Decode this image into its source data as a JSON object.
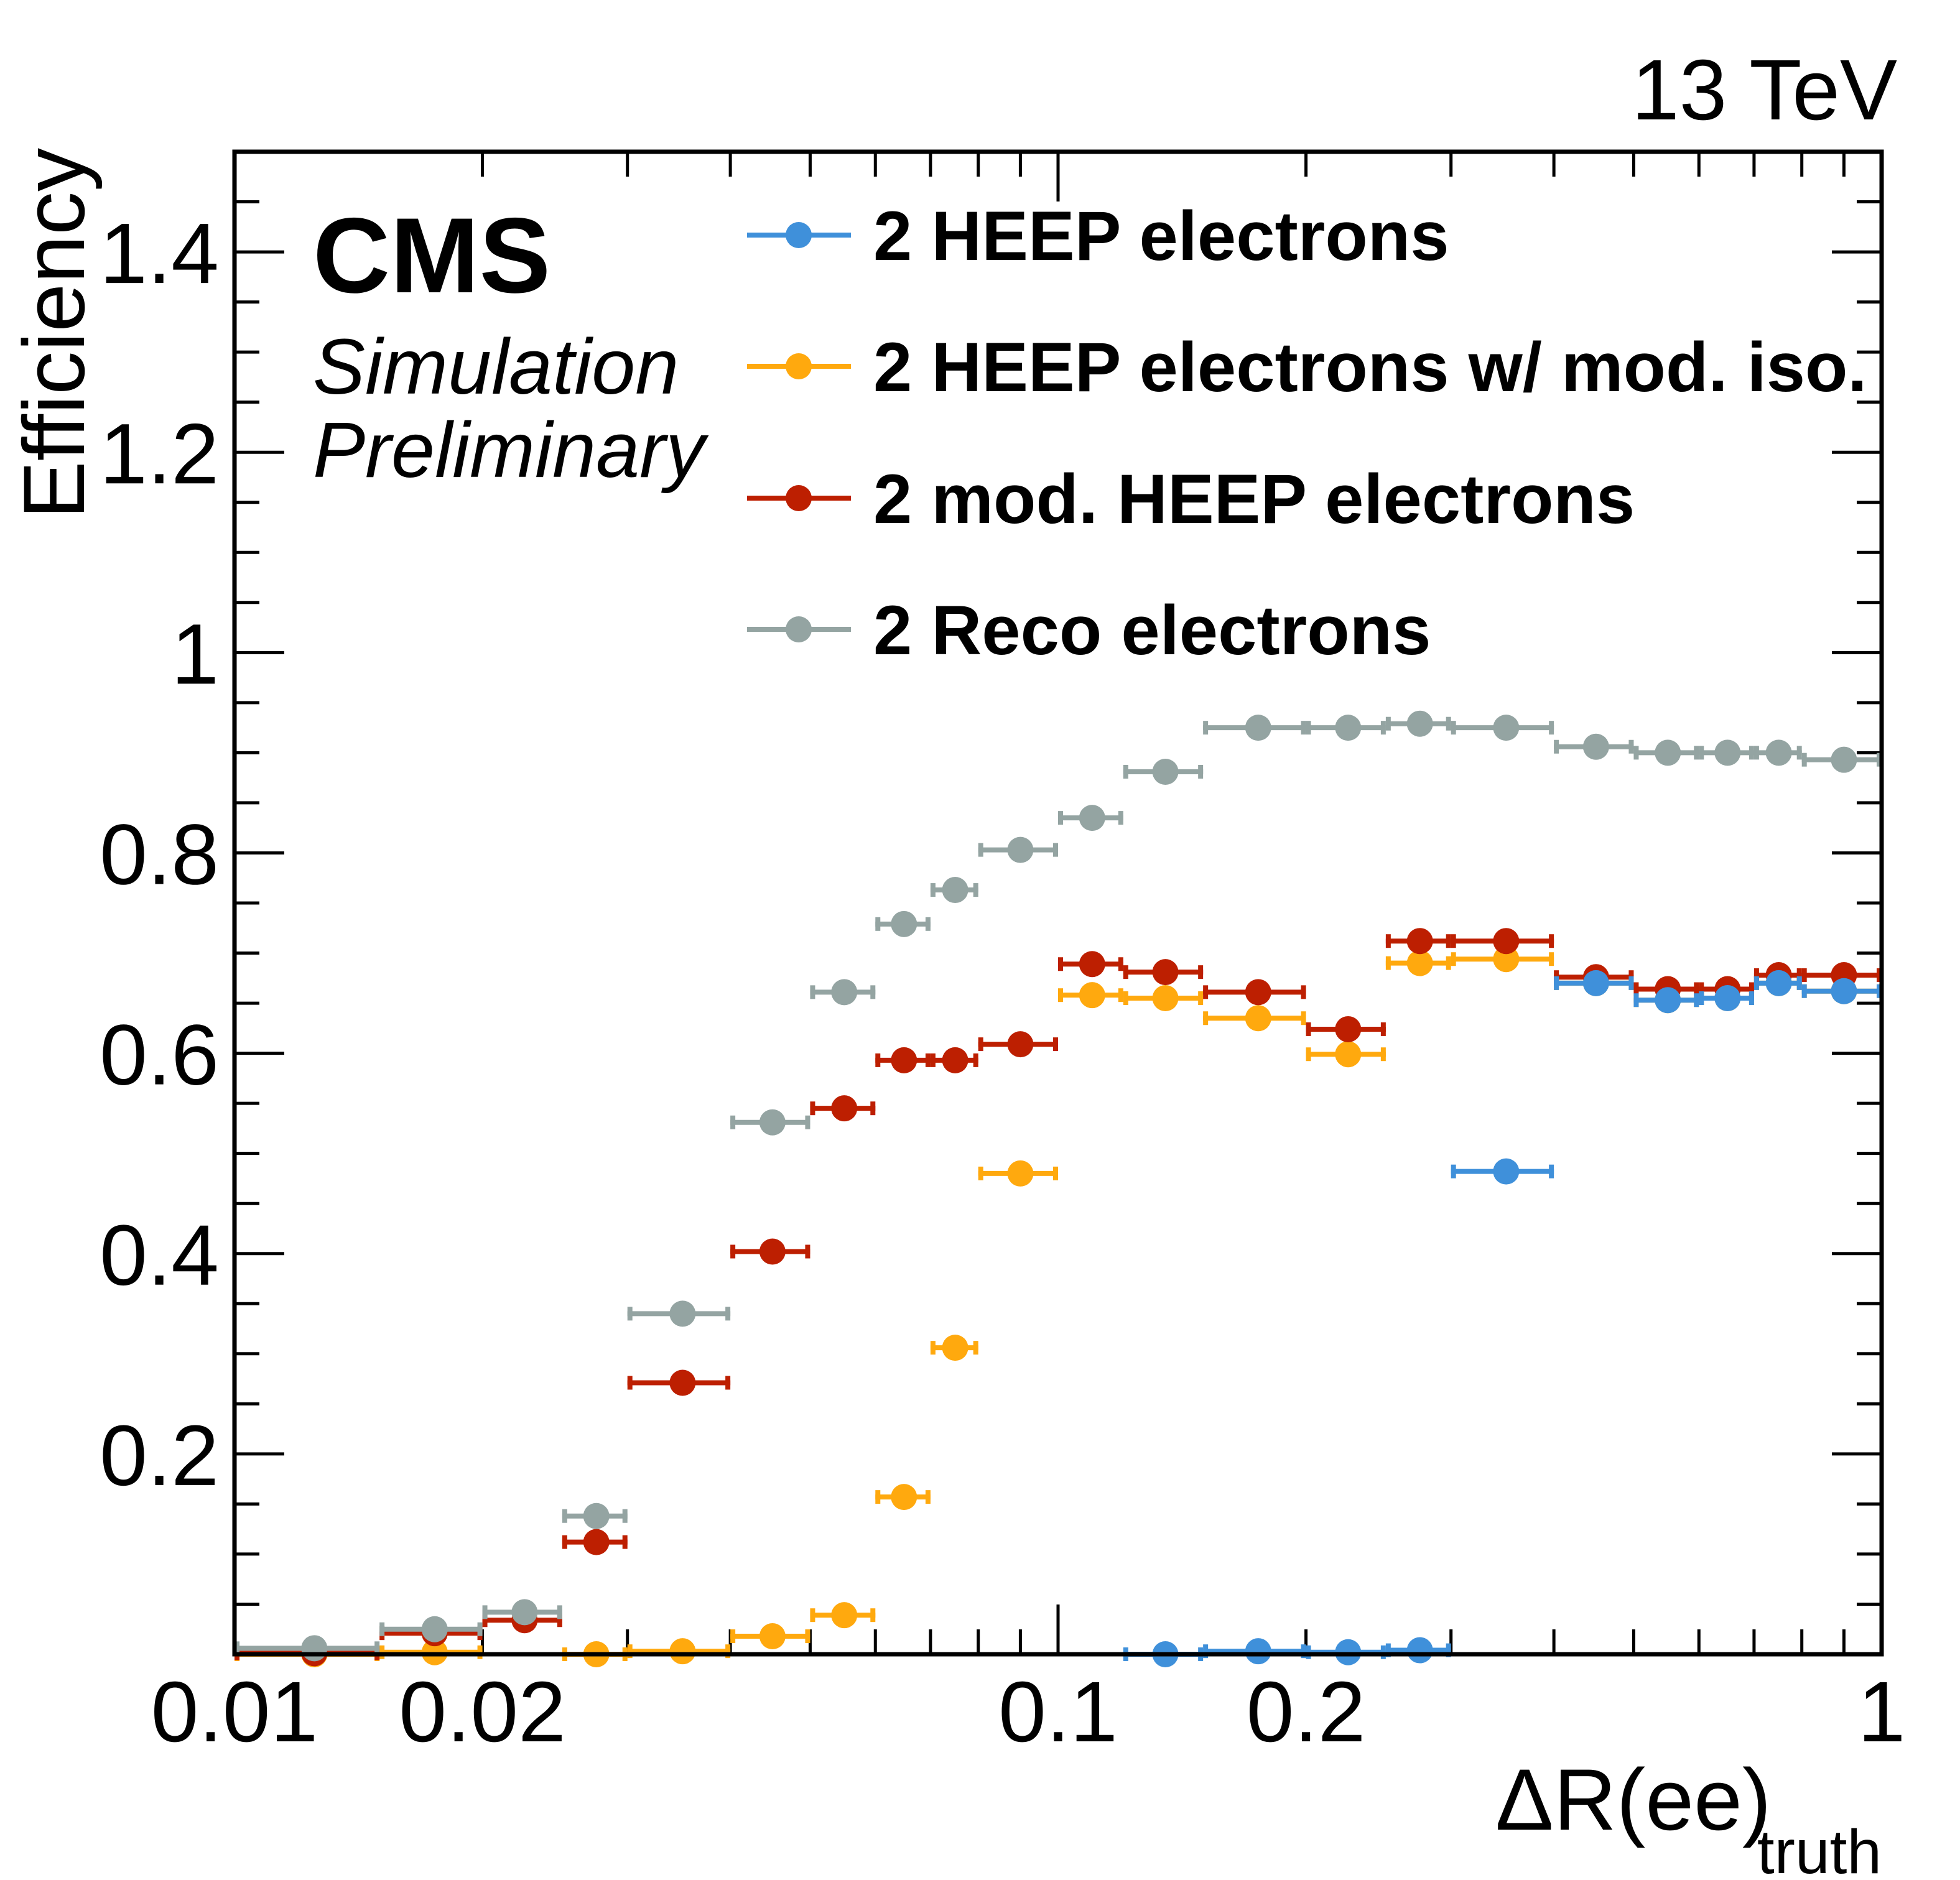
{
  "header": {
    "experiment": "CMS",
    "extra_line1": "Simulation",
    "extra_line2": "Preliminary",
    "energy": "13 TeV"
  },
  "chart_data": {
    "type": "scatter",
    "title": "",
    "xlabel": "ΔR(ee)",
    "xlabel_subscript": "truth",
    "ylabel": "Efficiency",
    "xscale": "log",
    "xlim": [
      0.01,
      1
    ],
    "ylim": [
      0,
      1.5
    ],
    "grid": false,
    "legend_position": "top-right",
    "x_tick_labels": [
      {
        "value": 0.01,
        "label": "0.01"
      },
      {
        "value": 0.02,
        "label": "0.02"
      },
      {
        "value": 0.1,
        "label": "0.1"
      },
      {
        "value": 0.2,
        "label": "0.2"
      },
      {
        "value": 1,
        "label": "1"
      }
    ],
    "y_tick_labels": [
      {
        "value": 0.2,
        "label": "0.2"
      },
      {
        "value": 0.4,
        "label": "0.4"
      },
      {
        "value": 0.6,
        "label": "0.6"
      },
      {
        "value": 0.8,
        "label": "0.8"
      },
      {
        "value": 1.0,
        "label": "1"
      },
      {
        "value": 1.2,
        "label": "1.2"
      },
      {
        "value": 1.4,
        "label": "1.4"
      }
    ],
    "bin_edges": [
      0.01,
      0.015,
      0.02,
      0.025,
      0.03,
      0.04,
      0.05,
      0.06,
      0.07,
      0.08,
      0.1,
      0.12,
      0.15,
      0.2,
      0.25,
      0.3,
      0.4,
      0.5,
      0.6,
      0.7,
      0.8,
      1.0
    ],
    "series": [
      {
        "name": "2 HEEP electrons",
        "color": "#3f90da",
        "values": [
          null,
          null,
          null,
          null,
          null,
          null,
          null,
          null,
          null,
          null,
          null,
          0.0,
          0.003,
          0.002,
          0.004,
          0.482,
          0.67,
          0.653,
          0.655,
          0.67,
          0.662
        ]
      },
      {
        "name": "2 HEEP electrons w/ mod. iso.",
        "color": "#ffa90e",
        "values": [
          0.0,
          0.002,
          null,
          0.0,
          0.003,
          0.018,
          0.039,
          0.157,
          0.306,
          0.48,
          0.658,
          0.655,
          0.635,
          0.599,
          0.69,
          0.694,
          0.67,
          0.653,
          0.655,
          0.67,
          0.662
        ]
      },
      {
        "name": "2 mod. HEEP electrons",
        "color": "#bd1f01",
        "values": [
          0.001,
          0.021,
          0.034,
          0.112,
          0.271,
          0.402,
          0.545,
          0.593,
          0.593,
          0.609,
          0.689,
          0.681,
          0.661,
          0.624,
          0.712,
          0.712,
          0.676,
          0.664,
          0.664,
          0.678,
          0.678
        ]
      },
      {
        "name": "2 Reco electrons",
        "color": "#94a4a2",
        "values": [
          0.006,
          0.025,
          0.042,
          0.138,
          0.34,
          0.531,
          0.661,
          0.729,
          0.763,
          0.803,
          0.835,
          0.881,
          0.925,
          0.925,
          0.929,
          0.925,
          0.906,
          0.9,
          0.9,
          0.9,
          0.893
        ]
      }
    ],
    "draw_order": [
      1,
      2,
      3,
      0
    ]
  }
}
